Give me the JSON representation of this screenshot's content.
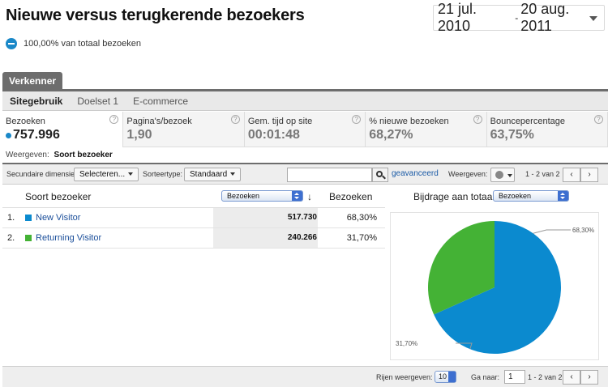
{
  "header": {
    "title": "Nieuwe versus terugkerende bezoekers",
    "date_start": "21 jul. 2010",
    "date_sep": "-",
    "date_end": "20 aug. 2011"
  },
  "segment": {
    "label": "100,00% van totaal bezoeken"
  },
  "tabs": {
    "main": "Verkenner",
    "sub": [
      "Sitegebruik",
      "Doelset 1",
      "E-commerce"
    ]
  },
  "metrics": [
    {
      "label": "Bezoeken",
      "value": "757.996"
    },
    {
      "label": "Pagina's/bezoek",
      "value": "1,90"
    },
    {
      "label": "Gem. tijd op site",
      "value": "00:01:48"
    },
    {
      "label": "% nieuwe bezoeken",
      "value": "68,27%"
    },
    {
      "label": "Bouncepercentage",
      "value": "63,75%"
    }
  ],
  "help_glyph": "?",
  "weergeven": {
    "label": "Weergeven:",
    "value": "Soort bezoeker"
  },
  "toolbar": {
    "secondary_label": "Secundaire dimensie:",
    "secondary_value": "Selecteren...",
    "sort_label": "Sorteertype:",
    "sort_value": "Standaard",
    "search_value": "",
    "advanced": "geavanceerd",
    "view_label": "Weergeven:",
    "range": "1 - 2 van 2",
    "prev": "‹",
    "next": "›"
  },
  "table": {
    "col_dimension": "Soort bezoeker",
    "metric_select": "Bezoeken",
    "sort_arrow": "↓",
    "col_metric": "Bezoeken",
    "contribution_label": "Bijdrage aan totaal:",
    "contribution_select": "Bezoeken",
    "rows": [
      {
        "idx": "1.",
        "label": "New Visitor",
        "value": "517.730",
        "pct": "68,30%",
        "color": "#0b8acf"
      },
      {
        "idx": "2.",
        "label": "Returning Visitor",
        "value": "240.266",
        "pct": "31,70%",
        "color": "#44b235"
      }
    ]
  },
  "chart_data": {
    "type": "pie",
    "categories": [
      "New Visitor",
      "Returning Visitor"
    ],
    "values": [
      68.3,
      31.7
    ],
    "labels": [
      "68,30%",
      "31,70%"
    ],
    "colors": [
      "#0b8acf",
      "#44b235"
    ]
  },
  "footer": {
    "rows_label": "Rijen weergeven:",
    "rows_value": "10",
    "goto_label": "Ga naar:",
    "goto_value": "1",
    "range": "1 - 2 van 2",
    "prev": "‹",
    "next": "›"
  }
}
